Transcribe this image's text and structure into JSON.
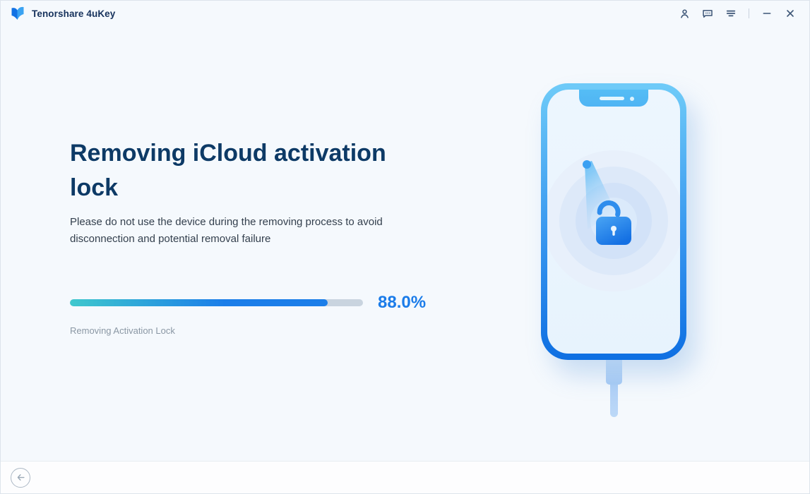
{
  "titlebar": {
    "app_title": "Tenorshare 4uKey",
    "icons": {
      "logo": "tenorshare-logo",
      "account": "user-icon",
      "feedback": "chat-bubble-icon",
      "menu": "menu-icon",
      "minimize": "minimize-icon",
      "close": "close-icon"
    }
  },
  "main": {
    "heading": "Removing iCloud activation lock",
    "description": "Please do not use the device during the removing process to avoid disconnection and potential removal failure",
    "progress": {
      "percent": 88.0,
      "percent_label": "88.0%",
      "status_label": "Removing Activation Lock"
    },
    "illustration": "phone-with-radar-unlock-illustration"
  },
  "footer": {
    "back_icon": "arrow-left-icon"
  },
  "colors": {
    "accent_blue": "#1b7ce9",
    "heading_navy": "#0d3a66",
    "progress_start": "#3fc8cd",
    "progress_end": "#1b7ee9",
    "progress_track": "#c9d4df",
    "phone_blue_light": "#6fcbf8",
    "phone_blue_dark": "#0e6fe2"
  }
}
